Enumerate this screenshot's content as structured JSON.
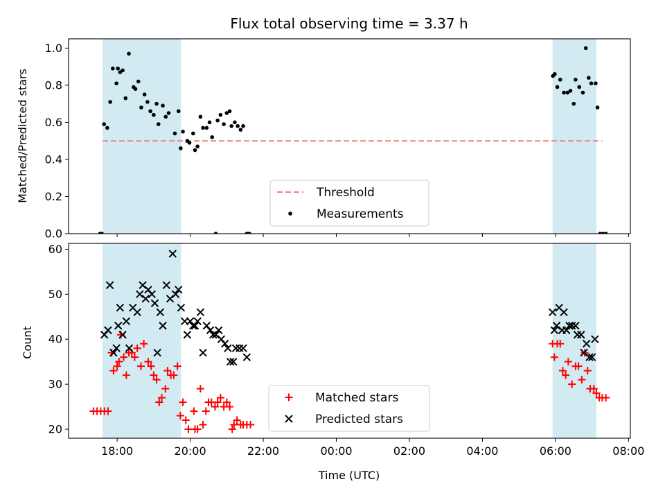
{
  "title": "Flux total observing time = 3.37 h",
  "x_label": "Time (UTC)",
  "x_tick_labels": [
    "18:00",
    "20:00",
    "22:00",
    "00:00",
    "02:00",
    "04:00",
    "06:00",
    "08:00"
  ],
  "shaded_color": "#add8e6",
  "chart_data": [
    {
      "type": "scatter",
      "panel": "top",
      "ylabel": "Matched/Predicted stars",
      "xlim": [
        16.67,
        32.05
      ],
      "ylim": [
        0,
        1.05
      ],
      "y_ticks": [
        "0.0",
        "0.2",
        "0.4",
        "0.6",
        "0.8",
        "1.0"
      ],
      "x_ticks_hours": [
        18,
        20,
        22,
        24,
        26,
        28,
        30,
        32
      ],
      "shaded_regions": [
        [
          17.6,
          19.75
        ],
        [
          29.92,
          31.12
        ]
      ],
      "threshold": {
        "name": "Threshold",
        "y": 0.5,
        "x_range": [
          17.6,
          31.28
        ],
        "color": "#f08080"
      },
      "series": [
        {
          "name": "Measurements",
          "color": "#000000",
          "points": [
            [
              17.53,
              0.0
            ],
            [
              17.58,
              0.0
            ],
            [
              17.64,
              0.59
            ],
            [
              17.73,
              0.57
            ],
            [
              17.81,
              0.71
            ],
            [
              17.88,
              0.89
            ],
            [
              17.98,
              0.81
            ],
            [
              18.02,
              0.89
            ],
            [
              18.08,
              0.87
            ],
            [
              18.15,
              0.88
            ],
            [
              18.23,
              0.73
            ],
            [
              18.32,
              0.97
            ],
            [
              18.45,
              0.79
            ],
            [
              18.5,
              0.78
            ],
            [
              18.58,
              0.82
            ],
            [
              18.66,
              0.68
            ],
            [
              18.75,
              0.75
            ],
            [
              18.83,
              0.71
            ],
            [
              18.91,
              0.66
            ],
            [
              19.0,
              0.64
            ],
            [
              19.08,
              0.7
            ],
            [
              19.13,
              0.59
            ],
            [
              19.25,
              0.69
            ],
            [
              19.33,
              0.63
            ],
            [
              19.41,
              0.65
            ],
            [
              19.58,
              0.54
            ],
            [
              19.68,
              0.66
            ],
            [
              19.74,
              0.46
            ],
            [
              19.8,
              0.55
            ],
            [
              19.92,
              0.5
            ],
            [
              19.98,
              0.49
            ],
            [
              20.08,
              0.54
            ],
            [
              20.13,
              0.45
            ],
            [
              20.2,
              0.47
            ],
            [
              20.28,
              0.63
            ],
            [
              20.35,
              0.57
            ],
            [
              20.45,
              0.57
            ],
            [
              20.53,
              0.6
            ],
            [
              20.6,
              0.52
            ],
            [
              20.7,
              0.0
            ],
            [
              20.75,
              0.61
            ],
            [
              20.83,
              0.64
            ],
            [
              20.92,
              0.59
            ],
            [
              21.0,
              0.65
            ],
            [
              21.08,
              0.66
            ],
            [
              21.13,
              0.58
            ],
            [
              21.22,
              0.6
            ],
            [
              21.3,
              0.58
            ],
            [
              21.38,
              0.56
            ],
            [
              21.45,
              0.58
            ],
            [
              21.55,
              0.0
            ],
            [
              21.62,
              0.0
            ],
            [
              29.93,
              0.85
            ],
            [
              29.98,
              0.86
            ],
            [
              30.05,
              0.79
            ],
            [
              30.13,
              0.83
            ],
            [
              30.23,
              0.76
            ],
            [
              30.33,
              0.76
            ],
            [
              30.41,
              0.77
            ],
            [
              30.5,
              0.7
            ],
            [
              30.55,
              0.83
            ],
            [
              30.65,
              0.79
            ],
            [
              30.75,
              0.76
            ],
            [
              30.83,
              1.0
            ],
            [
              30.91,
              0.84
            ],
            [
              30.98,
              0.81
            ],
            [
              31.1,
              0.81
            ],
            [
              31.15,
              0.68
            ],
            [
              31.22,
              0.0
            ],
            [
              31.3,
              0.0
            ],
            [
              31.38,
              0.0
            ]
          ]
        }
      ],
      "legend": {
        "position": "bottom-center",
        "entries": [
          "Threshold",
          "Measurements"
        ]
      }
    },
    {
      "type": "scatter",
      "panel": "bottom",
      "ylabel": "Count",
      "xlabel": "Time (UTC)",
      "xlim": [
        16.67,
        32.05
      ],
      "ylim": [
        18,
        61.3
      ],
      "y_ticks": [
        "20",
        "30",
        "40",
        "50",
        "60"
      ],
      "x_ticks_hours": [
        18,
        20,
        22,
        24,
        26,
        28,
        30,
        32
      ],
      "shaded_regions": [
        [
          17.6,
          19.75
        ],
        [
          29.92,
          31.12
        ]
      ],
      "series": [
        {
          "name": "Matched stars",
          "color": "#ff0000",
          "marker": "plus",
          "points": [
            [
              17.35,
              24
            ],
            [
              17.45,
              24
            ],
            [
              17.55,
              24
            ],
            [
              17.65,
              24
            ],
            [
              17.75,
              24
            ],
            [
              17.85,
              37
            ],
            [
              17.9,
              33
            ],
            [
              18.0,
              34
            ],
            [
              18.05,
              35
            ],
            [
              18.1,
              41
            ],
            [
              18.18,
              36
            ],
            [
              18.25,
              32
            ],
            [
              18.32,
              37
            ],
            [
              18.4,
              37
            ],
            [
              18.48,
              36
            ],
            [
              18.55,
              38
            ],
            [
              18.65,
              34
            ],
            [
              18.73,
              39
            ],
            [
              18.85,
              35
            ],
            [
              18.93,
              34
            ],
            [
              19.0,
              32
            ],
            [
              19.08,
              31
            ],
            [
              19.15,
              26
            ],
            [
              19.22,
              27
            ],
            [
              19.32,
              29
            ],
            [
              19.38,
              33
            ],
            [
              19.47,
              32
            ],
            [
              19.55,
              32
            ],
            [
              19.65,
              34
            ],
            [
              19.73,
              23
            ],
            [
              19.8,
              26
            ],
            [
              19.88,
              22
            ],
            [
              19.95,
              20
            ],
            [
              20.1,
              24
            ],
            [
              20.13,
              20
            ],
            [
              20.2,
              20
            ],
            [
              20.28,
              29
            ],
            [
              20.35,
              21
            ],
            [
              20.43,
              24
            ],
            [
              20.5,
              26
            ],
            [
              20.58,
              26
            ],
            [
              20.68,
              25
            ],
            [
              20.75,
              26
            ],
            [
              20.83,
              27
            ],
            [
              20.92,
              25
            ],
            [
              21.0,
              26
            ],
            [
              21.08,
              25
            ],
            [
              21.15,
              20
            ],
            [
              21.2,
              21
            ],
            [
              21.28,
              22
            ],
            [
              21.38,
              21
            ],
            [
              21.45,
              21
            ],
            [
              21.55,
              21
            ],
            [
              21.65,
              21
            ],
            [
              29.92,
              39
            ],
            [
              29.97,
              36
            ],
            [
              30.05,
              39
            ],
            [
              30.13,
              39
            ],
            [
              30.2,
              33
            ],
            [
              30.28,
              32
            ],
            [
              30.35,
              35
            ],
            [
              30.45,
              30
            ],
            [
              30.55,
              34
            ],
            [
              30.63,
              34
            ],
            [
              30.72,
              31
            ],
            [
              30.8,
              37
            ],
            [
              30.88,
              33
            ],
            [
              30.95,
              29
            ],
            [
              31.05,
              29
            ],
            [
              31.12,
              28
            ],
            [
              31.2,
              27
            ],
            [
              31.28,
              27
            ],
            [
              31.38,
              27
            ]
          ]
        },
        {
          "name": "Predicted stars",
          "color": "#000000",
          "marker": "x",
          "points": [
            [
              17.65,
              41
            ],
            [
              17.75,
              42
            ],
            [
              17.8,
              52
            ],
            [
              17.9,
              37
            ],
            [
              17.98,
              38
            ],
            [
              18.03,
              43
            ],
            [
              18.08,
              47
            ],
            [
              18.15,
              41
            ],
            [
              18.25,
              44
            ],
            [
              18.33,
              38
            ],
            [
              18.43,
              47
            ],
            [
              18.55,
              46
            ],
            [
              18.62,
              50
            ],
            [
              18.7,
              52
            ],
            [
              18.78,
              49
            ],
            [
              18.85,
              51
            ],
            [
              18.95,
              50
            ],
            [
              19.03,
              48
            ],
            [
              19.1,
              37
            ],
            [
              19.18,
              46
            ],
            [
              19.25,
              43
            ],
            [
              19.35,
              52
            ],
            [
              19.45,
              49
            ],
            [
              19.52,
              59
            ],
            [
              19.6,
              50
            ],
            [
              19.68,
              51
            ],
            [
              19.75,
              47
            ],
            [
              19.85,
              44
            ],
            [
              19.92,
              41
            ],
            [
              20.0,
              44
            ],
            [
              20.08,
              43
            ],
            [
              20.13,
              43
            ],
            [
              20.2,
              44
            ],
            [
              20.28,
              46
            ],
            [
              20.35,
              37
            ],
            [
              20.45,
              43
            ],
            [
              20.55,
              42
            ],
            [
              20.63,
              41
            ],
            [
              20.7,
              41
            ],
            [
              20.78,
              42
            ],
            [
              20.85,
              40
            ],
            [
              20.95,
              39
            ],
            [
              21.03,
              38
            ],
            [
              21.1,
              35
            ],
            [
              21.18,
              35
            ],
            [
              21.25,
              38
            ],
            [
              21.35,
              38
            ],
            [
              21.45,
              38
            ],
            [
              21.55,
              36
            ],
            [
              29.92,
              46
            ],
            [
              29.97,
              42
            ],
            [
              30.03,
              43
            ],
            [
              30.1,
              47
            ],
            [
              30.18,
              42
            ],
            [
              30.23,
              46
            ],
            [
              30.3,
              42
            ],
            [
              30.38,
              43
            ],
            [
              30.45,
              43
            ],
            [
              30.55,
              43
            ],
            [
              30.6,
              41
            ],
            [
              30.7,
              41
            ],
            [
              30.78,
              37
            ],
            [
              30.85,
              39
            ],
            [
              30.93,
              36
            ],
            [
              31.0,
              36
            ],
            [
              31.08,
              40
            ]
          ]
        }
      ],
      "legend": {
        "position": "bottom-center",
        "entries": [
          "Matched stars",
          "Predicted stars"
        ]
      }
    }
  ]
}
